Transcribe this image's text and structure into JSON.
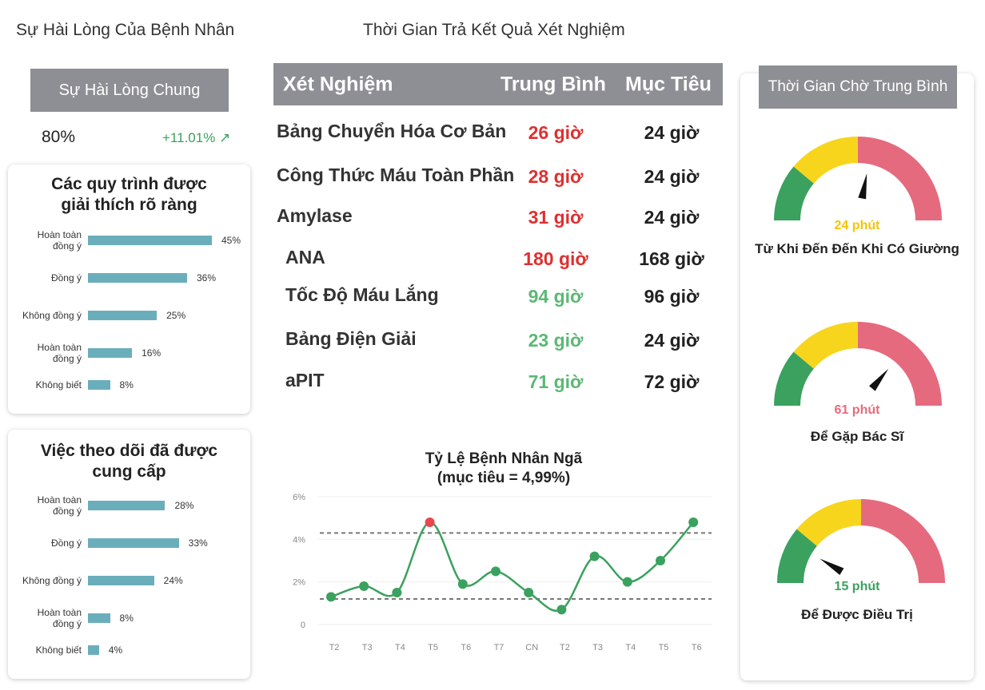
{
  "titles": {
    "satisfaction": "Sự Hài Lòng Của Bệnh Nhân",
    "turnaround": "Thời Gian Trả Kết Quả Xét Nghiệm"
  },
  "overall": {
    "label": "Sự Hài Lòng Chung",
    "value": "80%",
    "delta": "+11.01% ↗"
  },
  "survey_cards": [
    {
      "title_line1": "Các quy trình được",
      "title_line2": "giải thích rõ ràng",
      "rows": [
        {
          "label": "Hoàn toàn\nđồng ý",
          "value": 45,
          "text": "45%"
        },
        {
          "label": "Đồng ý",
          "value": 36,
          "text": "36%"
        },
        {
          "label": "Không đồng ý",
          "value": 25,
          "text": "25%"
        },
        {
          "label": "Hoàn toàn\nđồng ý",
          "value": 16,
          "text": "16%"
        },
        {
          "label": "Không biết",
          "value": 8,
          "text": "8%"
        }
      ]
    },
    {
      "title_line1": "Việc theo dõi đã được",
      "title_line2": "cung cấp",
      "rows": [
        {
          "label": "Hoàn toàn\nđồng ý",
          "value": 28,
          "text": "28%"
        },
        {
          "label": "Đồng ý",
          "value": 33,
          "text": "33%"
        },
        {
          "label": "Không đồng ý",
          "value": 24,
          "text": "24%"
        },
        {
          "label": "Hoàn toàn\nđồng ý",
          "value": 8,
          "text": "8%"
        },
        {
          "label": "Không biết",
          "value": 4,
          "text": "4%"
        }
      ]
    }
  ],
  "lab_table": {
    "headers": {
      "test": "Xét Nghiệm",
      "avg": "Trung Bình",
      "target": "Mục Tiêu"
    },
    "rows": [
      {
        "name": "Bảng Chuyển Hóa Cơ Bản",
        "avg": "26 giờ",
        "target": "24 giờ",
        "status": "red"
      },
      {
        "name": "Công Thức Máu Toàn Phần",
        "avg": "28 giờ",
        "target": "24 giờ",
        "status": "red"
      },
      {
        "name": "Amylase",
        "avg": "31 giờ",
        "target": "24 giờ",
        "status": "red"
      },
      {
        "name": "ANA",
        "avg": "180 giờ",
        "target": "168 giờ",
        "status": "red"
      },
      {
        "name": "Tốc Độ Máu Lắng",
        "avg": "94 giờ",
        "target": "96 giờ",
        "status": "green"
      },
      {
        "name": "Bảng Điện Giải",
        "avg": "23 giờ",
        "target": "24 giờ",
        "status": "green"
      },
      {
        "name": "aPIT",
        "avg": "71 giờ",
        "target": "72 giờ",
        "status": "green"
      }
    ]
  },
  "chart_data": {
    "type": "line",
    "title": "Tỷ Lệ Bệnh Nhân Ngã",
    "subtitle": "(mục tiêu = 4,99%)",
    "categories": [
      "T2",
      "T3",
      "T4",
      "T5",
      "T6",
      "T7",
      "CN",
      "T2",
      "T3",
      "T4",
      "T5",
      "T6"
    ],
    "values": [
      1.3,
      1.8,
      1.5,
      4.8,
      1.9,
      2.5,
      1.5,
      0.7,
      3.2,
      2.0,
      3.0,
      4.8
    ],
    "highlight_index": 3,
    "y_ticks": [
      "0",
      "2%",
      "4%",
      "6%"
    ],
    "ylim": [
      0,
      6
    ],
    "reference_lines": [
      4.3,
      1.2
    ],
    "colors": {
      "line": "#3aa15e",
      "point": "#3aa15e",
      "highlight": "#e8474f",
      "ref": "#777777"
    }
  },
  "wait_times": {
    "header": "Thời Gian Chờ Trung Bình",
    "gauges": [
      {
        "value_text": "24 phút",
        "label": "Từ Khi Đến Đến Khi Có Giường",
        "needle_fraction": 0.56,
        "value_color": "#f5c400"
      },
      {
        "value_text": "61 phút",
        "label": "Để Gặp Bác Sĩ",
        "needle_fraction": 0.72,
        "value_color": "#e56a7e"
      },
      {
        "value_text": "15 phút",
        "label": "Để Được Điều Trị",
        "needle_fraction": 0.17,
        "value_color": "#3aa15e"
      }
    ],
    "zone_colors": [
      "#3aa15e",
      "#f7d51d",
      "#e56a7e"
    ]
  }
}
